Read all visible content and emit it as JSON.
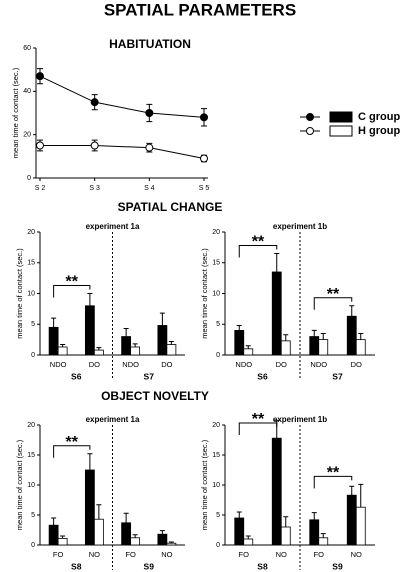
{
  "title": "SPATIAL PARAMETERS",
  "section_titles": [
    "HABITUATION",
    "SPATIAL CHANGE",
    "OBJECT NOVELTY"
  ],
  "chart_data": [
    {
      "type": "line",
      "ylabel": "mean time of contact (sec.)",
      "categories": [
        "S 2",
        "S 3",
        "S 4",
        "S 5"
      ],
      "ylim": [
        0,
        60
      ],
      "yticks": [
        0,
        20,
        40,
        60
      ],
      "legend": "right",
      "series": [
        {
          "name": "C group",
          "color": "#000000",
          "marker_fill": "#000000",
          "values": [
            47,
            35,
            30,
            28
          ],
          "errors": [
            3.5,
            3.5,
            4,
            4
          ]
        },
        {
          "name": "H group",
          "color": "#000000",
          "marker_fill": "#ffffff",
          "values": [
            15,
            15,
            14,
            9
          ],
          "errors": [
            2.5,
            2.5,
            2,
            1.5
          ]
        }
      ]
    },
    {
      "type": "bar",
      "title": "experiment 1a",
      "ylabel": "mean time of contact (sec.)",
      "groups": [
        "S6",
        "S7"
      ],
      "categories": [
        "NDO",
        "DO",
        "NDO",
        "DO"
      ],
      "ylim": [
        0,
        20
      ],
      "yticks": [
        0,
        5,
        10,
        15,
        20
      ],
      "series": [
        {
          "color": "#000000",
          "values": [
            4.5,
            8,
            3,
            4.8
          ],
          "errors": [
            1.5,
            2,
            1.3,
            2
          ]
        },
        {
          "color": "#ffffff",
          "values": [
            1.3,
            0.8,
            1.3,
            1.7
          ],
          "errors": [
            0.4,
            0.4,
            0.5,
            0.5
          ]
        }
      ],
      "annotations": [
        {
          "text": "**",
          "between": [
            0,
            1
          ]
        }
      ]
    },
    {
      "type": "bar",
      "title": "experiment 1b",
      "ylabel": "mean time of contact (sec.)",
      "groups": [
        "S6",
        "S7"
      ],
      "categories": [
        "NDO",
        "DO",
        "NDO",
        "DO"
      ],
      "ylim": [
        0,
        20
      ],
      "yticks": [
        0,
        5,
        10,
        15,
        20
      ],
      "series": [
        {
          "color": "#000000",
          "values": [
            4,
            13.5,
            3,
            6.3
          ],
          "errors": [
            0.8,
            3,
            1,
            1.7
          ]
        },
        {
          "color": "#ffffff",
          "values": [
            1,
            2.3,
            2.5,
            2.5
          ],
          "errors": [
            0.5,
            1,
            1,
            1
          ]
        }
      ],
      "annotations": [
        {
          "text": "**",
          "between": [
            0,
            1
          ]
        },
        {
          "text": "**",
          "between": [
            2,
            3
          ]
        }
      ]
    },
    {
      "type": "bar",
      "title": "experiment 1a",
      "ylabel": "mean time of contact (sec.)",
      "groups": [
        "S8",
        "S9"
      ],
      "categories": [
        "FO",
        "NO",
        "FO",
        "NO"
      ],
      "ylim": [
        0,
        20
      ],
      "yticks": [
        0,
        5,
        10,
        15,
        20
      ],
      "series": [
        {
          "color": "#000000",
          "values": [
            3.3,
            12.5,
            3.7,
            1.8
          ],
          "errors": [
            1.2,
            2.7,
            1.6,
            0.6
          ]
        },
        {
          "color": "#ffffff",
          "values": [
            1.1,
            4.3,
            1.2,
            0.3
          ],
          "errors": [
            0.4,
            2.4,
            0.5,
            0.2
          ]
        }
      ],
      "annotations": [
        {
          "text": "**",
          "between": [
            0,
            1
          ]
        }
      ]
    },
    {
      "type": "bar",
      "title": "experiment 1b",
      "ylabel": "mean time of contact (sec.)",
      "groups": [
        "S8",
        "S9"
      ],
      "categories": [
        "FO",
        "NO",
        "FO",
        "NO"
      ],
      "ylim": [
        0,
        20
      ],
      "yticks": [
        0,
        5,
        10,
        15,
        20
      ],
      "series": [
        {
          "color": "#000000",
          "values": [
            4.5,
            17.8,
            4.2,
            8.3
          ],
          "errors": [
            1,
            3,
            1.2,
            1.5
          ]
        },
        {
          "color": "#ffffff",
          "values": [
            1,
            3,
            1.2,
            6.3
          ],
          "errors": [
            0.5,
            1.7,
            0.7,
            3.8
          ]
        }
      ],
      "annotations": [
        {
          "text": "**",
          "between": [
            0,
            1
          ]
        },
        {
          "text": "**",
          "between": [
            2,
            3
          ]
        }
      ]
    }
  ]
}
